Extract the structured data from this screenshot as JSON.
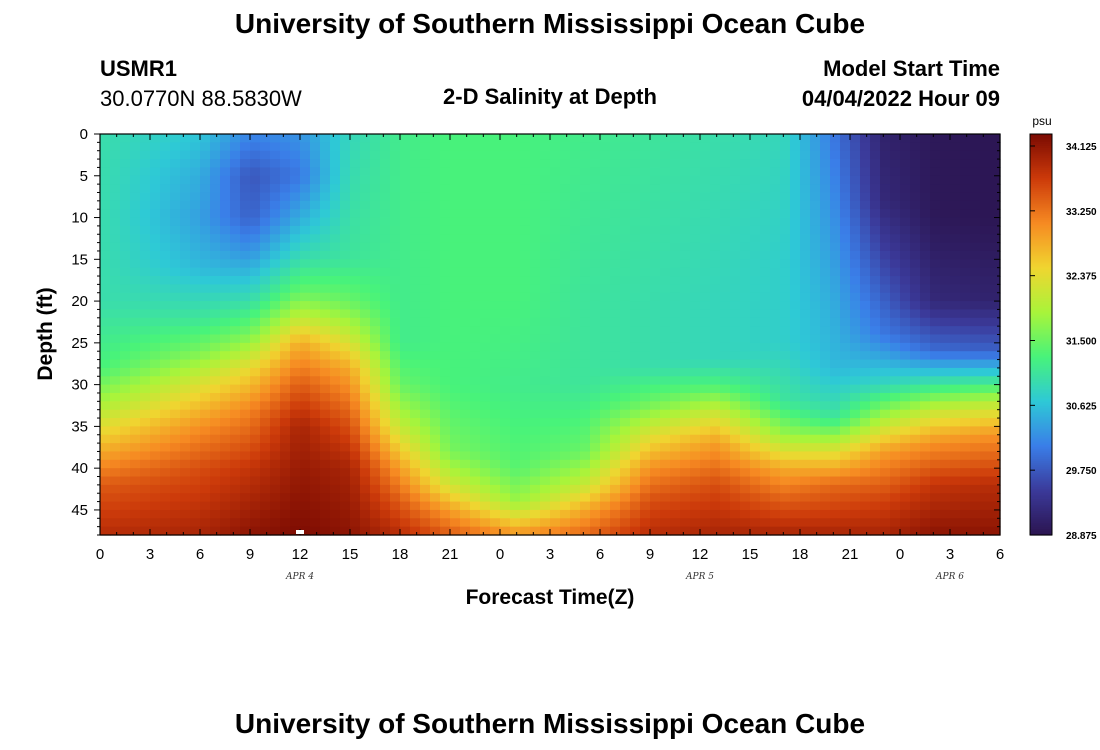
{
  "page": {
    "title_top": "University of Southern Mississippi Ocean Cube",
    "title_bottom": "University of Southern Mississippi Ocean Cube",
    "station_id": "USMR1",
    "station_coords": "30.0770N  88.5830W",
    "plot_title": "2-D Salinity at Depth",
    "model_start_label": "Model Start Time",
    "model_start_value": "04/04/2022 Hour 09"
  },
  "chart_data": {
    "type": "heatmap",
    "title": "2-D Salinity at Depth",
    "xlabel": "Forecast Time(Z)",
    "ylabel": "Depth (ft)",
    "xlim": [
      0,
      54
    ],
    "ylim": [
      0,
      48
    ],
    "x_ticks": [
      0,
      3,
      6,
      9,
      12,
      15,
      18,
      21,
      24,
      27,
      30,
      33,
      36,
      39,
      42,
      45,
      48,
      51,
      54
    ],
    "x_tick_labels": [
      "0",
      "3",
      "6",
      "9",
      "12",
      "15",
      "18",
      "21",
      "0",
      "3",
      "6",
      "9",
      "12",
      "15",
      "18",
      "21",
      "0",
      "3",
      "6"
    ],
    "y_ticks": [
      0,
      5,
      10,
      15,
      20,
      25,
      30,
      35,
      40,
      45
    ],
    "date_labels": [
      {
        "text": "APR 4",
        "x": 12
      },
      {
        "text": "APR 5",
        "x": 36
      },
      {
        "text": "APR 6",
        "x": 51
      }
    ],
    "current_time_marker_x": 12,
    "colorbar": {
      "unit": "psu",
      "min": 28.875,
      "max": 34.125,
      "tick_labels": [
        "34.125",
        "33.250",
        "32.375",
        "31.500",
        "30.625",
        "29.750",
        "28.875"
      ],
      "colors": [
        "#2b1450",
        "#3b3a9a",
        "#3a7ee8",
        "#2ec9d6",
        "#48f37a",
        "#a9f43a",
        "#f0d530",
        "#f68a22",
        "#cc3a0a",
        "#7a0a02"
      ]
    },
    "profile_columns": [
      {
        "x": 0,
        "depths": [
          0,
          10,
          20,
          28,
          33,
          38,
          42,
          48
        ],
        "salinity": [
          30.9,
          30.9,
          30.9,
          31.2,
          31.9,
          32.7,
          33.3,
          33.7
        ]
      },
      {
        "x": 6,
        "depths": [
          0,
          5,
          10,
          16,
          22,
          26,
          30,
          35,
          40,
          48
        ],
        "salinity": [
          30.6,
          30.4,
          30.3,
          30.5,
          31.0,
          31.5,
          32.2,
          32.9,
          33.4,
          33.8
        ]
      },
      {
        "x": 9,
        "depths": [
          0,
          5,
          10,
          15,
          20,
          24,
          28,
          33,
          40,
          48
        ],
        "salinity": [
          30.1,
          29.7,
          29.8,
          30.3,
          30.9,
          31.5,
          32.3,
          33.0,
          33.6,
          34.0
        ]
      },
      {
        "x": 12,
        "depths": [
          0,
          5,
          10,
          15,
          19,
          22,
          25,
          30,
          35,
          48
        ],
        "salinity": [
          30.2,
          30.0,
          30.4,
          30.9,
          31.4,
          32.0,
          32.7,
          33.3,
          33.8,
          34.1
        ]
      },
      {
        "x": 15,
        "depths": [
          0,
          8,
          15,
          20,
          24,
          28,
          34,
          40,
          48
        ],
        "salinity": [
          30.8,
          30.9,
          31.0,
          31.4,
          32.0,
          32.7,
          33.3,
          33.8,
          34.0
        ]
      },
      {
        "x": 18,
        "depths": [
          0,
          15,
          25,
          30,
          35,
          40,
          44,
          48
        ],
        "salinity": [
          31.1,
          31.1,
          31.1,
          31.4,
          32.0,
          32.8,
          33.3,
          33.7
        ]
      },
      {
        "x": 21,
        "depths": [
          0,
          20,
          30,
          38,
          42,
          45,
          48
        ],
        "salinity": [
          31.2,
          31.2,
          31.2,
          31.5,
          32.1,
          32.8,
          33.3
        ]
      },
      {
        "x": 25,
        "depths": [
          0,
          20,
          30,
          40,
          44,
          46,
          48
        ],
        "salinity": [
          31.2,
          31.2,
          31.1,
          31.3,
          31.7,
          32.3,
          32.9
        ]
      },
      {
        "x": 29,
        "depths": [
          0,
          20,
          30,
          38,
          42,
          45,
          48
        ],
        "salinity": [
          31.1,
          31.0,
          31.0,
          31.4,
          32.0,
          32.7,
          33.2
        ]
      },
      {
        "x": 33,
        "depths": [
          0,
          20,
          28,
          32,
          36,
          40,
          44,
          48
        ],
        "salinity": [
          31.0,
          30.9,
          30.9,
          31.4,
          32.2,
          32.9,
          33.4,
          33.7
        ]
      },
      {
        "x": 37,
        "depths": [
          0,
          20,
          27,
          30,
          33,
          37,
          42,
          48
        ],
        "salinity": [
          30.9,
          30.8,
          30.8,
          31.2,
          32.0,
          32.8,
          33.4,
          33.8
        ]
      },
      {
        "x": 41,
        "depths": [
          0,
          15,
          25,
          32,
          36,
          40,
          44,
          48
        ],
        "salinity": [
          30.8,
          30.7,
          30.7,
          31.0,
          31.7,
          32.7,
          33.3,
          33.8
        ]
      },
      {
        "x": 44,
        "depths": [
          0,
          10,
          20,
          28,
          34,
          38,
          42,
          48
        ],
        "salinity": [
          30.0,
          30.2,
          30.4,
          30.5,
          31.0,
          32.2,
          33.2,
          33.8
        ]
      },
      {
        "x": 47,
        "depths": [
          0,
          8,
          16,
          24,
          30,
          34,
          38,
          44,
          48
        ],
        "salinity": [
          29.1,
          29.2,
          29.6,
          30.0,
          30.8,
          31.8,
          32.8,
          33.5,
          33.8
        ]
      },
      {
        "x": 50,
        "depths": [
          0,
          10,
          20,
          26,
          30,
          33,
          37,
          42,
          48
        ],
        "salinity": [
          28.95,
          28.95,
          29.2,
          29.9,
          31.0,
          32.0,
          32.9,
          33.6,
          34.0
        ]
      },
      {
        "x": 54,
        "depths": [
          0,
          10,
          20,
          26,
          29,
          32,
          36,
          42,
          48
        ],
        "salinity": [
          28.9,
          28.9,
          29.1,
          29.8,
          30.8,
          31.9,
          32.9,
          33.7,
          34.0
        ]
      }
    ]
  }
}
